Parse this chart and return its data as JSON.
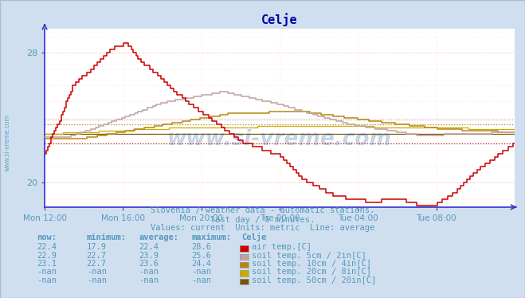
{
  "title": "Celje",
  "subtitle1": "Slovenia / weather data - automatic stations.",
  "subtitle2": "last day / 5 minutes.",
  "subtitle3": "Values: current  Units: metric  Line: average",
  "watermark": "www.si-vreme.com",
  "bg_color": "#d0dff0",
  "plot_bg_color": "#ffffff",
  "title_color": "#0000aa",
  "text_color": "#5599bb",
  "axis_color": "#3333cc",
  "grid_color_major": "#ffbbbb",
  "grid_color_minor": "#ffdddd",
  "ylim": [
    18.5,
    29.5
  ],
  "ytick_labels": [
    "20",
    "28"
  ],
  "ytick_vals": [
    20,
    28
  ],
  "xlabel_ticks": [
    "Mon 12:00",
    "Mon 16:00",
    "Mon 20:00",
    "Tue 00:00",
    "Tue 04:00",
    "Tue 08:00"
  ],
  "n_points": 288,
  "colors": {
    "air_temp": "#cc0000",
    "soil_5cm": "#c0a0a0",
    "soil_10cm": "#b8860b",
    "soil_20cm": "#ccaa00",
    "soil_50cm": "#7a5500"
  },
  "avg_lines": {
    "air_temp": 22.4,
    "soil_5cm": 23.9,
    "soil_10cm": 23.6
  },
  "legend_items": [
    {
      "color": "#cc0000",
      "label": "air temp.[C]",
      "now": "22.4",
      "min": "17.9",
      "avg": "22.4",
      "max": "28.6"
    },
    {
      "color": "#c0a0a0",
      "label": "soil temp. 5cm / 2in[C]",
      "now": "22.9",
      "min": "22.7",
      "avg": "23.9",
      "max": "25.6"
    },
    {
      "color": "#b8860b",
      "label": "soil temp. 10cm / 4in[C]",
      "now": "23.1",
      "min": "22.7",
      "avg": "23.6",
      "max": "24.4"
    },
    {
      "color": "#ccaa00",
      "label": "soil temp. 20cm / 8in[C]",
      "now": "-nan",
      "min": "-nan",
      "avg": "-nan",
      "max": "-nan"
    },
    {
      "color": "#7a5500",
      "label": "soil temp. 50cm / 20in[C]",
      "now": "-nan",
      "min": "-nan",
      "avg": "-nan",
      "max": "-nan"
    }
  ]
}
